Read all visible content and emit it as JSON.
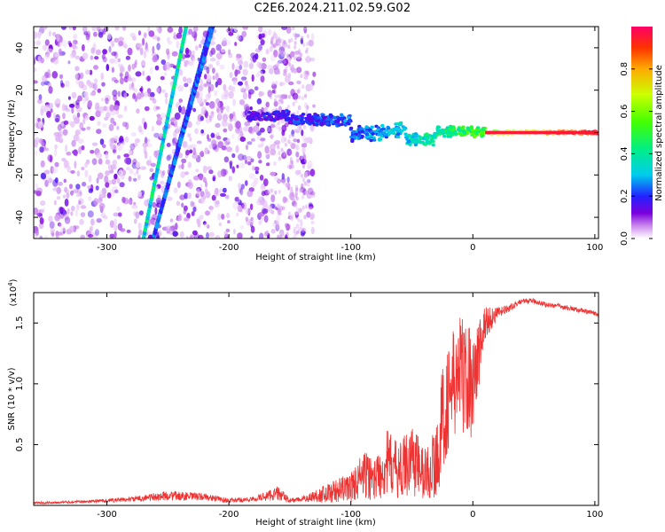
{
  "title": "C2E6.2024.211.02.59.G02",
  "colors": {
    "snr_line": "#ee3333",
    "axis": "#000000",
    "background": "#ffffff"
  },
  "chart_data": [
    {
      "id": "spectrogram",
      "type": "heatmap",
      "xlabel": "Height of straight line (km)",
      "ylabel": "Frequency (Hz)",
      "xlim": [
        -360,
        103
      ],
      "ylim": [
        -50,
        50
      ],
      "xticks": [
        -300,
        -200,
        -100,
        0,
        100
      ],
      "yticks": [
        -40,
        -20,
        0,
        20,
        40
      ],
      "xtick_labels": [
        "-300",
        "-200",
        "-100",
        "0",
        "100"
      ],
      "ytick_labels": [
        "-40",
        "-20",
        "0",
        "20",
        "40"
      ],
      "colorbar": {
        "label": "Normalized spectral amplitude",
        "range": [
          0,
          1
        ],
        "ticks": [
          0.0,
          0.2,
          0.4,
          0.6,
          0.8
        ],
        "tick_labels": [
          "0.0",
          "0.2",
          "0.4",
          "0.6",
          "0.8"
        ],
        "colormap": [
          "#ffffff",
          "#cc88ee",
          "#7a00dd",
          "#2222ff",
          "#00ccee",
          "#00ee88",
          "#44ff00",
          "#ccff00",
          "#ffaa00",
          "#ff3300",
          "#ff0066"
        ]
      },
      "features": [
        {
          "name": "diagonal streak 1",
          "x": [
            -262,
            -215
          ],
          "y": [
            -50,
            50
          ],
          "amplitude": 0.3
        },
        {
          "name": "diagonal streak 2",
          "x": [
            -270,
            -235
          ],
          "y": [
            -50,
            50
          ],
          "amplitude": 0.45
        },
        {
          "name": "bright streak",
          "x": [
            -262,
            -213
          ],
          "y": [
            -50,
            50
          ],
          "amplitude": 0.32
        },
        {
          "name": "tracked tone",
          "x": [
            -185,
            103
          ],
          "y_start": 8,
          "y_end": 0,
          "amplitude_start": 0.25,
          "amplitude_end": 0.95
        }
      ]
    },
    {
      "id": "snr",
      "type": "line",
      "xlabel": "Height of straight line (km)",
      "ylabel": "SNR (10 * v/v)",
      "scale_label": "(x10",
      "scale_exponent": "4",
      "scale_suffix": ")",
      "xlim": [
        -360,
        103
      ],
      "ylim": [
        0,
        1.75
      ],
      "xticks": [
        -300,
        -200,
        -100,
        0,
        100
      ],
      "yticks": [
        0.5,
        1.0,
        1.5
      ],
      "xtick_labels": [
        "-300",
        "-200",
        "-100",
        "0",
        "100"
      ],
      "ytick_labels": [
        "0.5",
        "1.0",
        "1.5"
      ],
      "series": [
        {
          "x": [
            -360,
            -320,
            -280,
            -250,
            -220,
            -200,
            -180,
            -160,
            -150,
            -140,
            -120,
            -100,
            -90,
            -80,
            -70,
            -60,
            -50,
            -40,
            -30,
            -25,
            -20,
            -10,
            0,
            10,
            20,
            30,
            40,
            50,
            60,
            70,
            80,
            90,
            103
          ],
          "y": [
            0.02,
            0.03,
            0.05,
            0.08,
            0.07,
            0.04,
            0.05,
            0.1,
            0.04,
            0.05,
            0.1,
            0.15,
            0.25,
            0.22,
            0.35,
            0.28,
            0.4,
            0.25,
            0.35,
            0.7,
            0.9,
            1.1,
            1.0,
            1.5,
            1.58,
            1.62,
            1.68,
            1.68,
            1.65,
            1.64,
            1.62,
            1.6,
            1.57
          ],
          "noise_amplitude": [
            0.01,
            0.01,
            0.02,
            0.04,
            0.03,
            0.02,
            0.02,
            0.06,
            0.02,
            0.02,
            0.08,
            0.12,
            0.2,
            0.18,
            0.28,
            0.22,
            0.32,
            0.22,
            0.3,
            0.45,
            0.45,
            0.5,
            0.45,
            0.15,
            0.05,
            0.03,
            0.02,
            0.02,
            0.02,
            0.02,
            0.02,
            0.02,
            0.02
          ]
        }
      ]
    }
  ]
}
